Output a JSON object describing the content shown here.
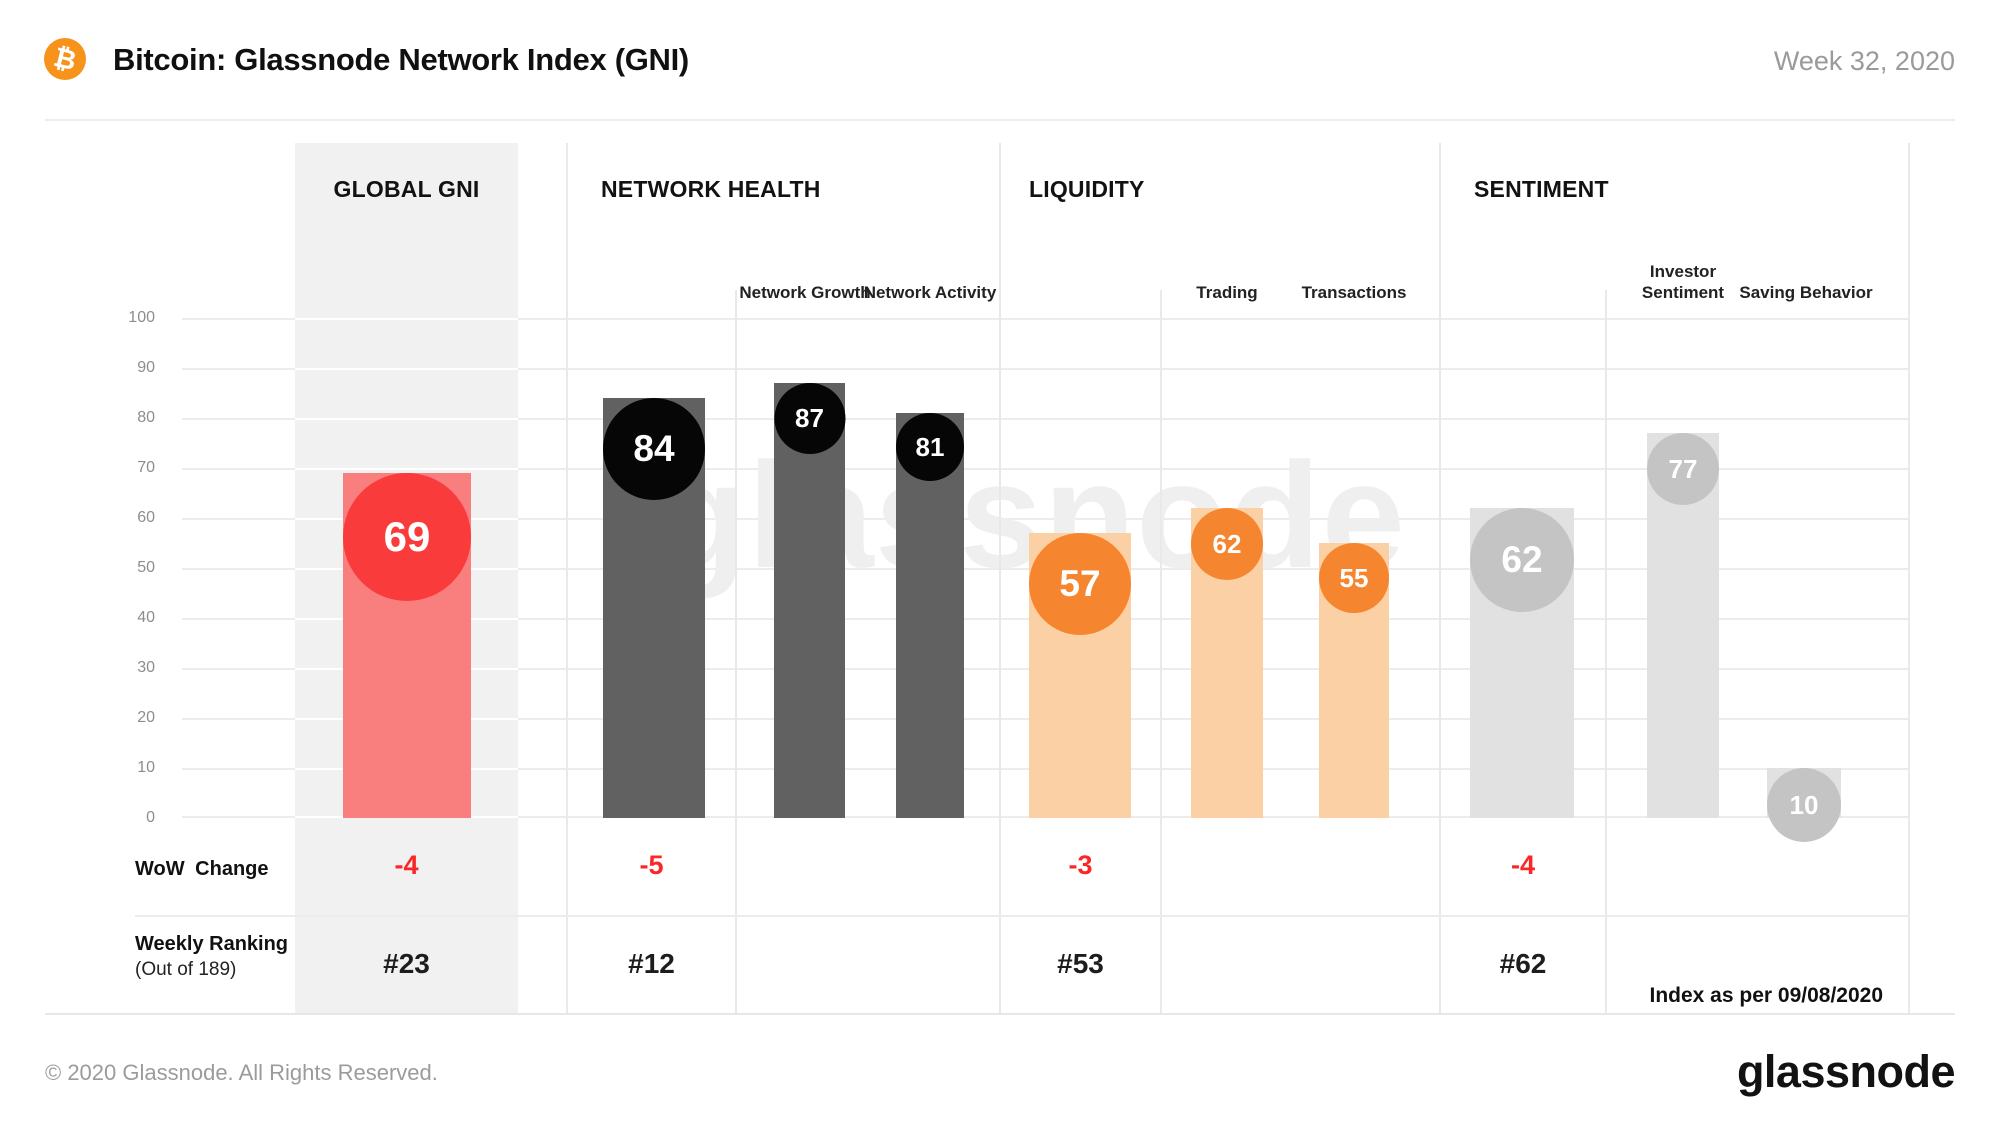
{
  "header": {
    "title": "Bitcoin: Glassnode Network Index (GNI)",
    "week": "Week 32, 2020",
    "bitcoin_icon": "₿",
    "bitcoin_orange": "#f7931a"
  },
  "axis": {
    "ticks": [
      "100",
      "90",
      "80",
      "70",
      "60",
      "50",
      "40",
      "30",
      "20",
      "10",
      "0"
    ]
  },
  "watermark": "glassnode",
  "sections": [
    {
      "label": "GLOBAL GNI",
      "main": {
        "name": "Global GNI",
        "value": 69
      },
      "subs": [],
      "wow": "-4",
      "rank": "#23",
      "colors": {
        "bar": "#f97e7e",
        "bubble": "#fa3b3b"
      }
    },
    {
      "label": "NETWORK HEALTH",
      "main": {
        "name": "Network Health",
        "value": 84
      },
      "subs": [
        {
          "label": "Network Growth",
          "value": 87
        },
        {
          "label": "Network Activity",
          "value": 81
        }
      ],
      "wow": "-5",
      "rank": "#12",
      "colors": {
        "bar": "#616161",
        "bubble": "#060606"
      }
    },
    {
      "label": "LIQUIDITY",
      "main": {
        "name": "Liquidity",
        "value": 57
      },
      "subs": [
        {
          "label": "Trading",
          "value": 62
        },
        {
          "label": "Transactions",
          "value": 55
        }
      ],
      "wow": "-3",
      "rank": "#53",
      "colors": {
        "bar": "#fcd0a5",
        "bubble": "#f5862f"
      }
    },
    {
      "label": "SENTIMENT",
      "main": {
        "name": "Sentiment",
        "value": 62
      },
      "subs": [
        {
          "label": "Investor Sentiment",
          "value": 77
        },
        {
          "label": "Saving Behavior",
          "value": 10
        }
      ],
      "wow": "-4",
      "rank": "#62",
      "colors": {
        "bar": "#e1e1e1",
        "bubble": "#c4c4c4"
      }
    }
  ],
  "rows": {
    "wow_label": "WoW  Change",
    "rank_label": "Weekly Ranking",
    "rank_sublabel": "(Out of 189)"
  },
  "notes": {
    "index_as_per": "Index as per 09/08/2020"
  },
  "footer": {
    "copyright": "© 2020 Glassnode. All Rights Reserved.",
    "logo": "glassnode"
  },
  "chart_data": {
    "type": "bar",
    "title": "Bitcoin: Glassnode Network Index (GNI)",
    "period": "Week 32, 2020",
    "ylim": [
      0,
      100
    ],
    "yticks": [
      0,
      10,
      20,
      30,
      40,
      50,
      60,
      70,
      80,
      90,
      100
    ],
    "grid": true,
    "groups": [
      {
        "name": "GLOBAL GNI",
        "bars": [
          {
            "label": "Global GNI",
            "value": 69
          }
        ],
        "wow_change": -4,
        "weekly_ranking": 23
      },
      {
        "name": "NETWORK HEALTH",
        "bars": [
          {
            "label": "Network Health",
            "value": 84
          },
          {
            "label": "Network Growth",
            "value": 87
          },
          {
            "label": "Network Activity",
            "value": 81
          }
        ],
        "wow_change": -5,
        "weekly_ranking": 12
      },
      {
        "name": "LIQUIDITY",
        "bars": [
          {
            "label": "Liquidity",
            "value": 57
          },
          {
            "label": "Trading",
            "value": 62
          },
          {
            "label": "Transactions",
            "value": 55
          }
        ],
        "wow_change": -3,
        "weekly_ranking": 53
      },
      {
        "name": "SENTIMENT",
        "bars": [
          {
            "label": "Sentiment",
            "value": 62
          },
          {
            "label": "Investor Sentiment",
            "value": 77
          },
          {
            "label": "Saving Behavior",
            "value": 10
          }
        ],
        "wow_change": -4,
        "weekly_ranking": 62
      }
    ],
    "ranking_out_of": 189,
    "as_of": "09/08/2020"
  }
}
